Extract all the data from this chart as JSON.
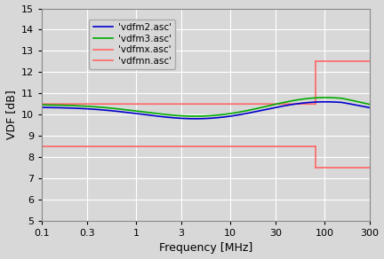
{
  "xlabel": "Frequency [MHz]",
  "ylabel": "VDF [dB]",
  "xlim": [
    0.1,
    300
  ],
  "ylim": [
    5,
    15
  ],
  "yticks": [
    5,
    6,
    7,
    8,
    9,
    10,
    11,
    12,
    13,
    14,
    15
  ],
  "xticks": [
    0.1,
    0.3,
    1,
    3,
    10,
    30,
    100,
    300
  ],
  "xtick_labels": [
    "0.1",
    "0.3",
    "1",
    "3",
    "10",
    "30",
    "100",
    "300"
  ],
  "legend_labels": [
    "'vdfm2.asc'",
    "'vdfm3.asc'",
    "'vdfmx.asc'",
    "'vdfmn.asc'"
  ],
  "vdfm2_color": "#0000cc",
  "vdfm3_color": "#00aa00",
  "vdfmx_color": "#ff6666",
  "vdfmn_color": "#ff6666",
  "background_color": "#d8d8d8",
  "plot_bg_color": "#d8d8d8",
  "grid_color": "#ffffff",
  "vdfmx_step_freq": 80,
  "vdfmn_step_freq": 80,
  "vdfmx_low": 10.5,
  "vdfmx_high": 12.5,
  "vdfmn_low": 8.5,
  "vdfmn_high": 7.5,
  "tick_fontsize": 8,
  "label_fontsize": 9,
  "legend_fontsize": 7.5,
  "linewidth": 1.2
}
